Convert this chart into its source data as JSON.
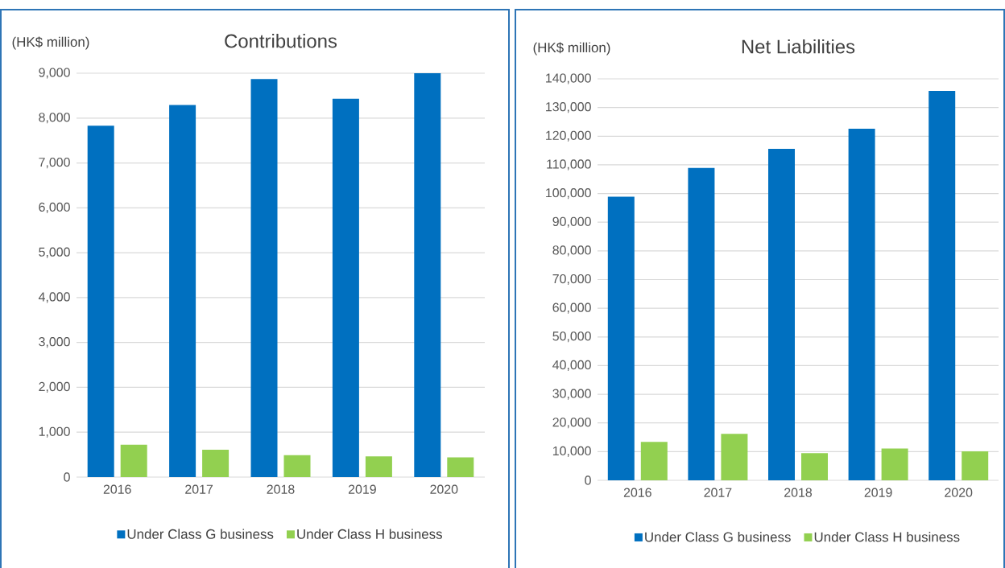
{
  "chart_data": [
    {
      "type": "bar",
      "title": "Contributions",
      "ylabel": "(HK$ million)",
      "categories": [
        "2016",
        "2017",
        "2018",
        "2019",
        "2020"
      ],
      "series": [
        {
          "name": "Under Class G business",
          "color": "#0070c0",
          "values": [
            7830,
            8290,
            8870,
            8430,
            9000
          ]
        },
        {
          "name": "Under Class H business",
          "color": "#92d050",
          "values": [
            720,
            610,
            490,
            460,
            440
          ]
        }
      ],
      "ylim": [
        0,
        9000
      ],
      "yticks": [
        0,
        {
          "value": 1000,
          "label": "1,000"
        },
        {
          "value": 2000,
          "label": "2,000"
        },
        {
          "value": 3000,
          "label": "3,000"
        },
        {
          "value": 4000,
          "label": "4,000"
        },
        {
          "value": 5000,
          "label": "5,000"
        },
        {
          "value": 6000,
          "label": "6,000"
        },
        {
          "value": 7000,
          "label": "7,000"
        },
        {
          "value": 8000,
          "label": "8,000"
        },
        {
          "value": 9000,
          "label": "9,000"
        }
      ],
      "grid": "y",
      "legend": "bottom"
    },
    {
      "type": "bar",
      "title": "Net Liabilities",
      "ylabel": "(HK$ million)",
      "categories": [
        "2016",
        "2017",
        "2018",
        "2019",
        "2020"
      ],
      "series": [
        {
          "name": "Under Class G business",
          "color": "#0070c0",
          "values": [
            98900,
            108900,
            115600,
            122600,
            135800
          ]
        },
        {
          "name": "Under Class H business",
          "color": "#92d050",
          "values": [
            13400,
            16200,
            9500,
            11100,
            10100
          ]
        }
      ],
      "ylim": [
        0,
        140000
      ],
      "yticks": [
        0,
        {
          "value": 10000,
          "label": "10,000"
        },
        {
          "value": 20000,
          "label": "20,000"
        },
        {
          "value": 30000,
          "label": "30,000"
        },
        {
          "value": 40000,
          "label": "40,000"
        },
        {
          "value": 50000,
          "label": "50,000"
        },
        {
          "value": 60000,
          "label": "60,000"
        },
        {
          "value": 70000,
          "label": "70,000"
        },
        {
          "value": 80000,
          "label": "80,000"
        },
        {
          "value": 90000,
          "label": "90,000"
        },
        {
          "value": 100000,
          "label": "100,000"
        },
        {
          "value": 110000,
          "label": "110,000"
        },
        {
          "value": 120000,
          "label": "120,000"
        },
        {
          "value": 130000,
          "label": "130,000"
        },
        {
          "value": 140000,
          "label": "140,000"
        }
      ],
      "grid": "y",
      "legend": "bottom"
    }
  ]
}
